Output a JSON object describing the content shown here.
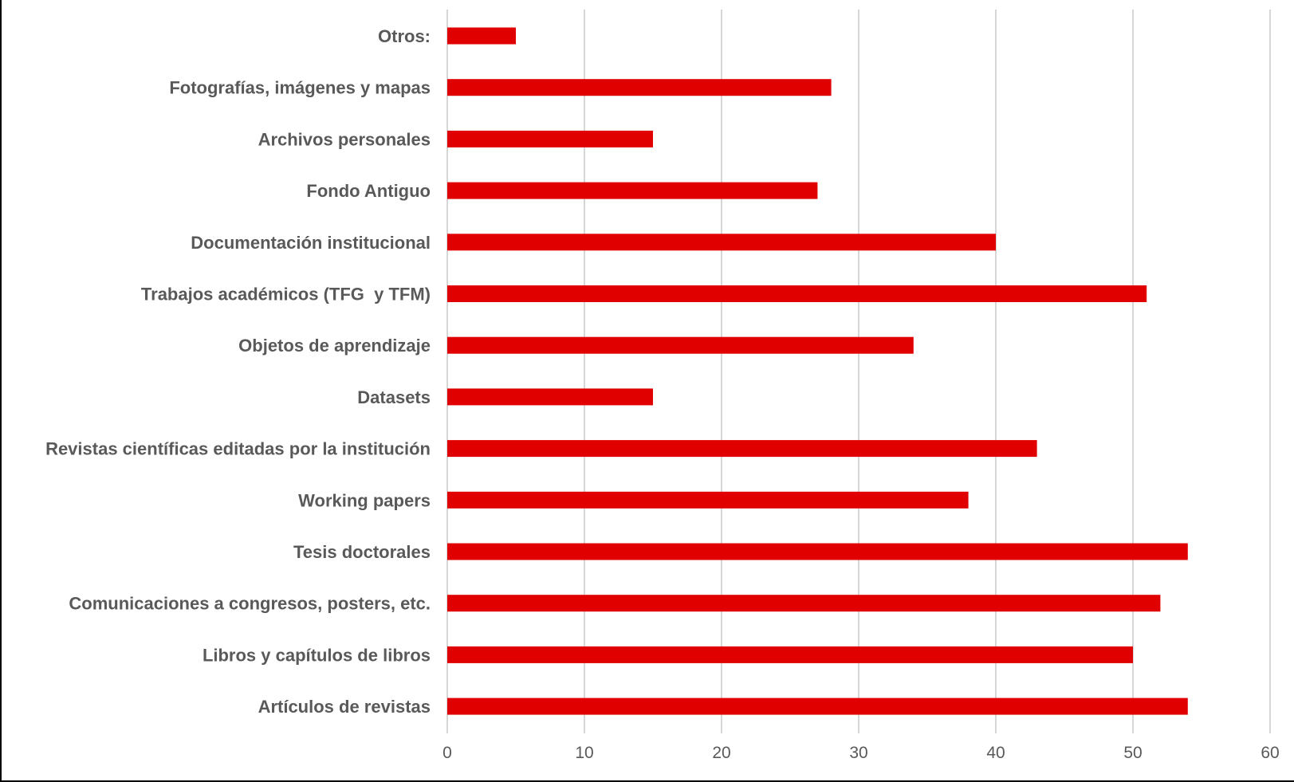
{
  "chart_data": {
    "type": "bar",
    "orientation": "horizontal",
    "title": "",
    "xlabel": "",
    "ylabel": "",
    "xlim": [
      0,
      60
    ],
    "x_ticks": [
      0,
      10,
      20,
      30,
      40,
      50,
      60
    ],
    "grid": "vertical",
    "legend": "none",
    "bar_color": "#e00000",
    "grid_color": "#bfbfbf",
    "label_color": "#595959",
    "categories": [
      "Otros:",
      "Fotografías, imágenes y mapas",
      "Archivos personales",
      "Fondo Antiguo",
      "Documentación institucional",
      "Trabajos académicos (TFG  y TFM)",
      "Objetos de aprendizaje",
      "Datasets",
      "Revistas científicas editadas por la institución",
      "Working papers",
      "Tesis doctorales",
      "Comunicaciones a congresos, posters, etc.",
      "Libros y capítulos de libros",
      "Artículos de revistas"
    ],
    "values": [
      5,
      28,
      15,
      27,
      40,
      51,
      34,
      15,
      43,
      38,
      54,
      52,
      50,
      54
    ]
  }
}
